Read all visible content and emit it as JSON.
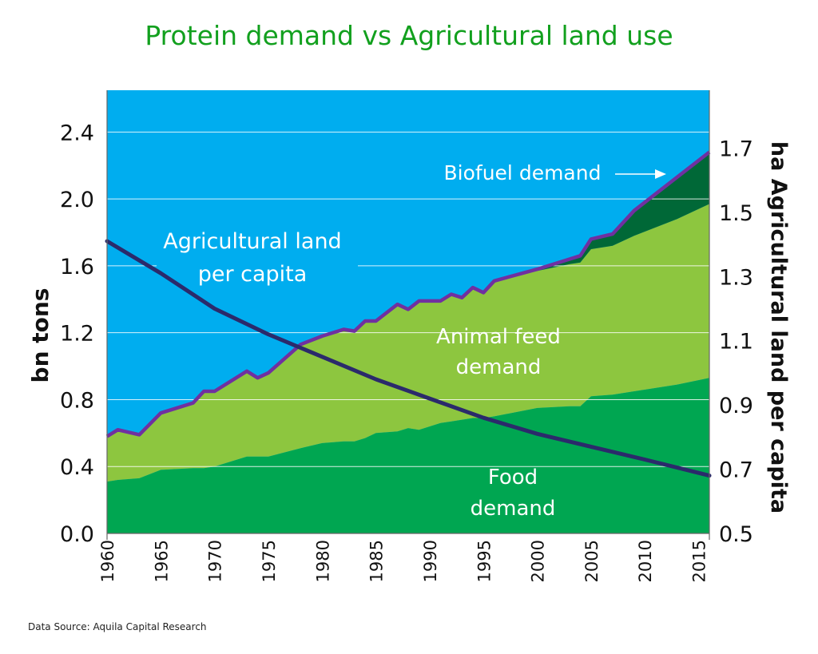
{
  "chart_data": {
    "type": "area",
    "title": "Protein demand vs Agricultural land use",
    "source": "Data Source: Aquila Capital Research",
    "ylabel": "bn tons",
    "ylabel_right": "ha Agricultural land per capita",
    "ylim": [
      0,
      2.65
    ],
    "ylim_right": [
      0.5,
      1.88
    ],
    "xlim": [
      1960,
      2016
    ],
    "x_ticks": [
      "1960",
      "1965",
      "1970",
      "1975",
      "1980",
      "1985",
      "1990",
      "1995",
      "2000",
      "2005",
      "2010",
      "2015"
    ],
    "y_ticks": [
      "0.0",
      "0.4",
      "0.8",
      "1.2",
      "1.6",
      "2.0",
      "2.4"
    ],
    "y_ticks_right": [
      "0.5",
      "0.7",
      "0.9",
      "1.1",
      "1.3",
      "1.5",
      "1.7"
    ],
    "grid": true,
    "stacked": true,
    "x": [
      1960,
      1961,
      1963,
      1965,
      1968,
      1969,
      1970,
      1973,
      1974,
      1975,
      1978,
      1980,
      1982,
      1983,
      1984,
      1985,
      1987,
      1988,
      1989,
      1991,
      1992,
      1993,
      1994,
      1995,
      1996,
      2000,
      2003,
      2004,
      2005,
      2007,
      2009,
      2013,
      2016
    ],
    "series": [
      {
        "name": "Food demand",
        "label_lines": [
          "Food",
          "demand"
        ],
        "color": "#00a651",
        "values": [
          0.31,
          0.32,
          0.33,
          0.38,
          0.39,
          0.39,
          0.4,
          0.46,
          0.46,
          0.46,
          0.51,
          0.54,
          0.55,
          0.55,
          0.57,
          0.6,
          0.61,
          0.63,
          0.62,
          0.66,
          0.67,
          0.68,
          0.69,
          0.69,
          0.7,
          0.75,
          0.76,
          0.76,
          0.82,
          0.83,
          0.85,
          0.89,
          0.93
        ]
      },
      {
        "name": "Animal feed demand",
        "label_lines": [
          "Animal feed",
          "demand"
        ],
        "color": "#8dc63f",
        "values": [
          0.27,
          0.3,
          0.26,
          0.34,
          0.39,
          0.46,
          0.45,
          0.51,
          0.47,
          0.5,
          0.62,
          0.64,
          0.67,
          0.66,
          0.7,
          0.67,
          0.76,
          0.71,
          0.77,
          0.73,
          0.76,
          0.73,
          0.78,
          0.75,
          0.81,
          0.82,
          0.85,
          0.86,
          0.88,
          0.89,
          0.93,
          0.99,
          1.04
        ]
      },
      {
        "name": "Biofuel demand",
        "label_lines": [
          "Biofuel demand"
        ],
        "color": "#006837",
        "values": [
          0,
          0,
          0,
          0,
          0,
          0,
          0,
          0,
          0,
          0,
          0,
          0,
          0,
          0,
          0,
          0,
          0,
          0,
          0,
          0,
          0,
          0,
          0,
          0,
          0,
          0.01,
          0.03,
          0.04,
          0.06,
          0.07,
          0.15,
          0.25,
          0.31
        ]
      }
    ],
    "total_line_color": "#7030a0",
    "line_series": {
      "name": "Agricultural land per capita",
      "label_lines": [
        "Agricultural land",
        "per capita"
      ],
      "axis": "right",
      "color": "#2b2a6b",
      "x": [
        1960,
        1965,
        1970,
        1975,
        1980,
        1985,
        1990,
        1995,
        2000,
        2005,
        2010,
        2016
      ],
      "values": [
        1.41,
        1.31,
        1.2,
        1.12,
        1.05,
        0.98,
        0.92,
        0.86,
        0.81,
        0.77,
        0.73,
        0.68
      ]
    },
    "colors": {
      "background": "#00adef",
      "title": "#12a01e",
      "grid": "#ffffff"
    }
  }
}
